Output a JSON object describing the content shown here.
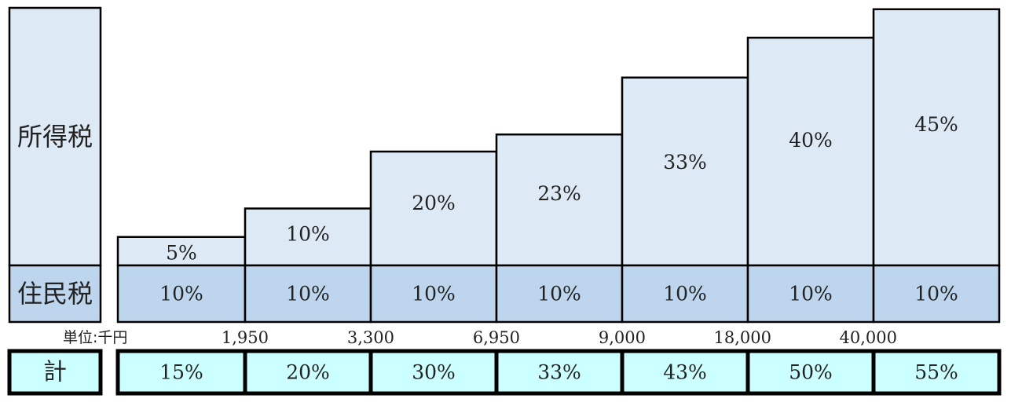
{
  "labels": {
    "income_tax": "所得税",
    "resident_tax": "住民税",
    "total": "計",
    "unit": "単位:千円"
  },
  "colors": {
    "income_fill": "#dde9f5",
    "resident_fill": "#bdd6ee",
    "total_fill": "#ccffff",
    "border": "#000000"
  },
  "chart_data": {
    "type": "bar",
    "stacked": true,
    "categories": [
      "~1,950",
      "1,950~3,300",
      "3,300~6,950",
      "6,950~9,000",
      "9,000~18,000",
      "18,000~40,000",
      "40,000~"
    ],
    "thresholds": [
      "1,950",
      "3,300",
      "6,950",
      "9,000",
      "18,000",
      "40,000"
    ],
    "unit": "単位:千円",
    "series": [
      {
        "name": "所得税",
        "values": [
          5,
          10,
          20,
          23,
          33,
          40,
          45
        ]
      },
      {
        "name": "住民税",
        "values": [
          10,
          10,
          10,
          10,
          10,
          10,
          10
        ]
      }
    ],
    "totals_name": "計",
    "totals": [
      15,
      20,
      30,
      33,
      43,
      50,
      55
    ],
    "value_suffix": "%"
  }
}
